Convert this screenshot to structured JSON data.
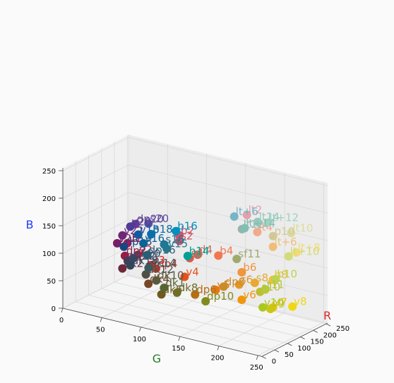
{
  "chart_data": {
    "type": "scatter3d",
    "title": "",
    "xlabel": "R",
    "ylabel": "G",
    "zlabel": "B",
    "axis_label_colors": {
      "R": "#d62728",
      "G": "#1f7a1f",
      "B": "#1f3cff"
    },
    "xlim": [
      0,
      255
    ],
    "ylim": [
      0,
      255
    ],
    "zlim": [
      0,
      255
    ],
    "x_ticks": [
      "0",
      "50",
      "100",
      "150",
      "200",
      "250"
    ],
    "y_ticks": [
      "0",
      "50",
      "100",
      "150",
      "200",
      "250"
    ],
    "z_ticks": [
      "0",
      "50",
      "100",
      "150",
      "200",
      "250"
    ],
    "grid": true,
    "points": [
      {
        "label": "b16",
        "r": 0,
        "g": 145,
        "b": 190,
        "color": "#0091be"
      },
      {
        "label": "b14",
        "r": 0,
        "g": 160,
        "b": 150,
        "color": "#00a096"
      },
      {
        "label": "v18",
        "r": 20,
        "g": 90,
        "b": 160,
        "color": "#145aa0"
      },
      {
        "label": "b18",
        "r": 10,
        "g": 110,
        "b": 170,
        "color": "#0a6eaa"
      },
      {
        "label": "v16",
        "r": 10,
        "g": 100,
        "b": 150,
        "color": "#0a6496"
      },
      {
        "label": "dp18",
        "r": 25,
        "g": 70,
        "b": 130,
        "color": "#194682"
      },
      {
        "label": "s16",
        "r": 30,
        "g": 120,
        "b": 150,
        "color": "#1e7896"
      },
      {
        "label": "v15",
        "r": 40,
        "g": 120,
        "b": 140,
        "color": "#28788c"
      },
      {
        "label": "dp16",
        "r": 40,
        "g": 95,
        "b": 120,
        "color": "#285f78"
      },
      {
        "label": "v20",
        "r": 80,
        "g": 60,
        "b": 150,
        "color": "#503c96"
      },
      {
        "label": "s20",
        "r": 90,
        "g": 80,
        "b": 160,
        "color": "#5a50a0"
      },
      {
        "label": "dp20",
        "r": 100,
        "g": 60,
        "b": 150,
        "color": "#643c96"
      },
      {
        "label": "v22",
        "r": 110,
        "g": 40,
        "b": 120,
        "color": "#6e2878"
      },
      {
        "label": "v25",
        "r": 120,
        "g": 30,
        "b": 100,
        "color": "#781e64"
      },
      {
        "label": "lt+6",
        "r": 120,
        "g": 180,
        "b": 200,
        "color": "#78b4c8"
      },
      {
        "label": "lt+14",
        "r": 130,
        "g": 190,
        "b": 180,
        "color": "#82beb4"
      },
      {
        "label": "lt+12",
        "r": 160,
        "g": 210,
        "b": 190,
        "color": "#a0d2be"
      },
      {
        "label": "lt12",
        "r": 150,
        "g": 180,
        "b": 170,
        "color": "#96b4aa"
      },
      {
        "label": "lt14",
        "r": 150,
        "g": 200,
        "b": 190,
        "color": "#96c8be"
      },
      {
        "label": "dk22",
        "r": 70,
        "g": 60,
        "b": 90,
        "color": "#463c5a"
      },
      {
        "label": "dk20",
        "r": 60,
        "g": 70,
        "b": 100,
        "color": "#3c4664"
      },
      {
        "label": "dk18",
        "r": 50,
        "g": 70,
        "b": 90,
        "color": "#32465a"
      },
      {
        "label": "dk14",
        "r": 60,
        "g": 90,
        "b": 90,
        "color": "#3c5a5a"
      },
      {
        "label": "dk2",
        "r": 110,
        "g": 40,
        "b": 60,
        "color": "#6e283c"
      },
      {
        "label": "dk12",
        "r": 80,
        "g": 80,
        "b": 70,
        "color": "#505046"
      },
      {
        "label": "dk10",
        "r": 90,
        "g": 90,
        "b": 60,
        "color": "#5a5a3c"
      },
      {
        "label": "dp2",
        "r": 150,
        "g": 30,
        "b": 70,
        "color": "#961e46"
      },
      {
        "label": "dp4",
        "r": 180,
        "g": 60,
        "b": 50,
        "color": "#b43c32"
      },
      {
        "label": "dp6",
        "r": 180,
        "g": 110,
        "b": 20,
        "color": "#b46e14"
      },
      {
        "label": "dp8",
        "r": 200,
        "g": 140,
        "b": 40,
        "color": "#c88c28"
      },
      {
        "label": "dp10",
        "r": 130,
        "g": 140,
        "b": 30,
        "color": "#828c1e"
      },
      {
        "label": "dk4",
        "r": 120,
        "g": 70,
        "b": 40,
        "color": "#784628"
      },
      {
        "label": "dk6",
        "r": 110,
        "g": 90,
        "b": 30,
        "color": "#6e5a1e"
      },
      {
        "label": "dk8",
        "r": 110,
        "g": 110,
        "b": 40,
        "color": "#6e6e28"
      },
      {
        "label": "dk1",
        "r": 90,
        "g": 100,
        "b": 50,
        "color": "#5a6432"
      },
      {
        "label": "v1",
        "r": 190,
        "g": 20,
        "b": 80,
        "color": "#be1450"
      },
      {
        "label": "v2",
        "r": 200,
        "g": 30,
        "b": 60,
        "color": "#c81e3c"
      },
      {
        "label": "v3",
        "r": 220,
        "g": 40,
        "b": 40,
        "color": "#dc2828"
      },
      {
        "label": "v4",
        "r": 230,
        "g": 80,
        "b": 30,
        "color": "#e6501e"
      },
      {
        "label": "v5",
        "r": 230,
        "g": 120,
        "b": 20,
        "color": "#e67814"
      },
      {
        "label": "v6",
        "r": 240,
        "g": 150,
        "b": 10,
        "color": "#f0960a"
      },
      {
        "label": "v7",
        "r": 240,
        "g": 190,
        "b": 10,
        "color": "#f0be0a"
      },
      {
        "label": "v8",
        "r": 240,
        "g": 215,
        "b": 20,
        "color": "#f0d714"
      },
      {
        "label": "v9",
        "r": 200,
        "g": 200,
        "b": 20,
        "color": "#c8c814"
      },
      {
        "label": "v10",
        "r": 170,
        "g": 200,
        "b": 30,
        "color": "#aac81e"
      },
      {
        "label": "s2",
        "r": 210,
        "g": 80,
        "b": 100,
        "color": "#d25064"
      },
      {
        "label": "s4",
        "r": 220,
        "g": 90,
        "b": 70,
        "color": "#dc5a46"
      },
      {
        "label": "s6",
        "r": 230,
        "g": 150,
        "b": 40,
        "color": "#e69628"
      },
      {
        "label": "s8",
        "r": 230,
        "g": 170,
        "b": 50,
        "color": "#e6aa32"
      },
      {
        "label": "s10",
        "r": 190,
        "g": 190,
        "b": 50,
        "color": "#bebe32"
      },
      {
        "label": "b2",
        "r": 210,
        "g": 80,
        "b": 110,
        "color": "#d2506e"
      },
      {
        "label": "b4",
        "r": 240,
        "g": 120,
        "b": 80,
        "color": "#f07850"
      },
      {
        "label": "b6",
        "r": 240,
        "g": 150,
        "b": 60,
        "color": "#f0963c"
      },
      {
        "label": "b8",
        "r": 240,
        "g": 190,
        "b": 60,
        "color": "#f0be3c"
      },
      {
        "label": "b10",
        "r": 190,
        "g": 210,
        "b": 80,
        "color": "#bed250"
      },
      {
        "label": "d4",
        "r": 190,
        "g": 110,
        "b": 90,
        "color": "#be6e5a"
      },
      {
        "label": "lt4",
        "r": 240,
        "g": 170,
        "b": 140,
        "color": "#f0aa8c"
      },
      {
        "label": "lt+6",
        "r": 240,
        "g": 190,
        "b": 120,
        "color": "#f0be78"
      },
      {
        "label": "lt+8",
        "r": 240,
        "g": 220,
        "b": 120,
        "color": "#f0dc78"
      },
      {
        "label": "lt+10",
        "r": 210,
        "g": 220,
        "b": 120,
        "color": "#d2dc78"
      },
      {
        "label": "lt10",
        "r": 220,
        "g": 220,
        "b": 160,
        "color": "#dcdca0"
      },
      {
        "label": "sf11",
        "r": 160,
        "g": 170,
        "b": 110,
        "color": "#a0aa6e"
      },
      {
        "label": "t11",
        "r": 180,
        "g": 200,
        "b": 60,
        "color": "#b4c83c"
      },
      {
        "label": "p10",
        "r": 210,
        "g": 200,
        "b": 150,
        "color": "#d2c896"
      },
      {
        "label": "lt2",
        "r": 230,
        "g": 160,
        "b": 170,
        "color": "#e6a0aa"
      }
    ]
  }
}
